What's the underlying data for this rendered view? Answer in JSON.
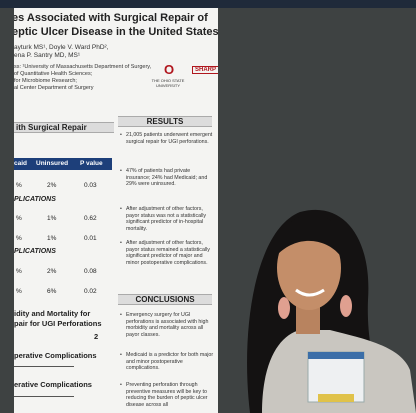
{
  "poster": {
    "title_lines": [
      "es Associated with Surgical Repair of",
      "eptic Ulcer Disease in the United States"
    ],
    "author_lines": [
      "ayturk MS¹, Doyle V. Ward PhD²,",
      "ena P. Santry MD, MS¹"
    ],
    "affiliation_lines": [
      "ss: ¹University of Massachusetts Department of Surgery,",
      "of Quantitative Health Sciences;",
      "for Microbiome Research;",
      "al Center Department of Surgery"
    ],
    "logo_mark": "O",
    "logo_university": "THE OHIO STATE UNIVERSITY",
    "logo_sharp": "SHARP",
    "table_title": "ith Surgical Repair",
    "table_headers": [
      "caid",
      "Uninsured",
      "P value"
    ],
    "table_rows": [
      [
        "%",
        "2%",
        "0.03"
      ],
      [
        "%",
        "1%",
        "0.62"
      ],
      [
        "%",
        "1%",
        "0.01"
      ],
      [
        "%",
        "2%",
        "0.08"
      ],
      [
        "%",
        "6%",
        "0.02"
      ]
    ],
    "section_labels": [
      "PLICATIONS",
      "PLICATIONS"
    ],
    "chart_title_lines": [
      "idity and Mortality for",
      "pair for UGI Perforations"
    ],
    "chart_labels": [
      "2",
      "perative Complications",
      "erative Complications"
    ],
    "results_heading": "RESULTS",
    "results_bullets": [
      "21,005 patients underwent emergent surgical repair for UGI perforations.",
      "47% of patients had private insurance; 24% had Medicaid; and 29% were uninsured.",
      "After adjustment of other factors, payor status was not a statistically significant predictor of in-hospital mortality.",
      "After adjustment of other factors, payor status remained a statistically significant predictor of major and minor postoperative complications."
    ],
    "conclusions_heading": "CONCLUSIONS",
    "conclusions_bullets": [
      "Emergency surgery for UGI perforations is associated with high morbidity and mortality across all payor classes.",
      "Medicaid is a predictor for both major and minor postoperative complications.",
      "Preventing perforation through preventive measures will be key to reducing the burden of peptic ulcer disease across all"
    ]
  }
}
